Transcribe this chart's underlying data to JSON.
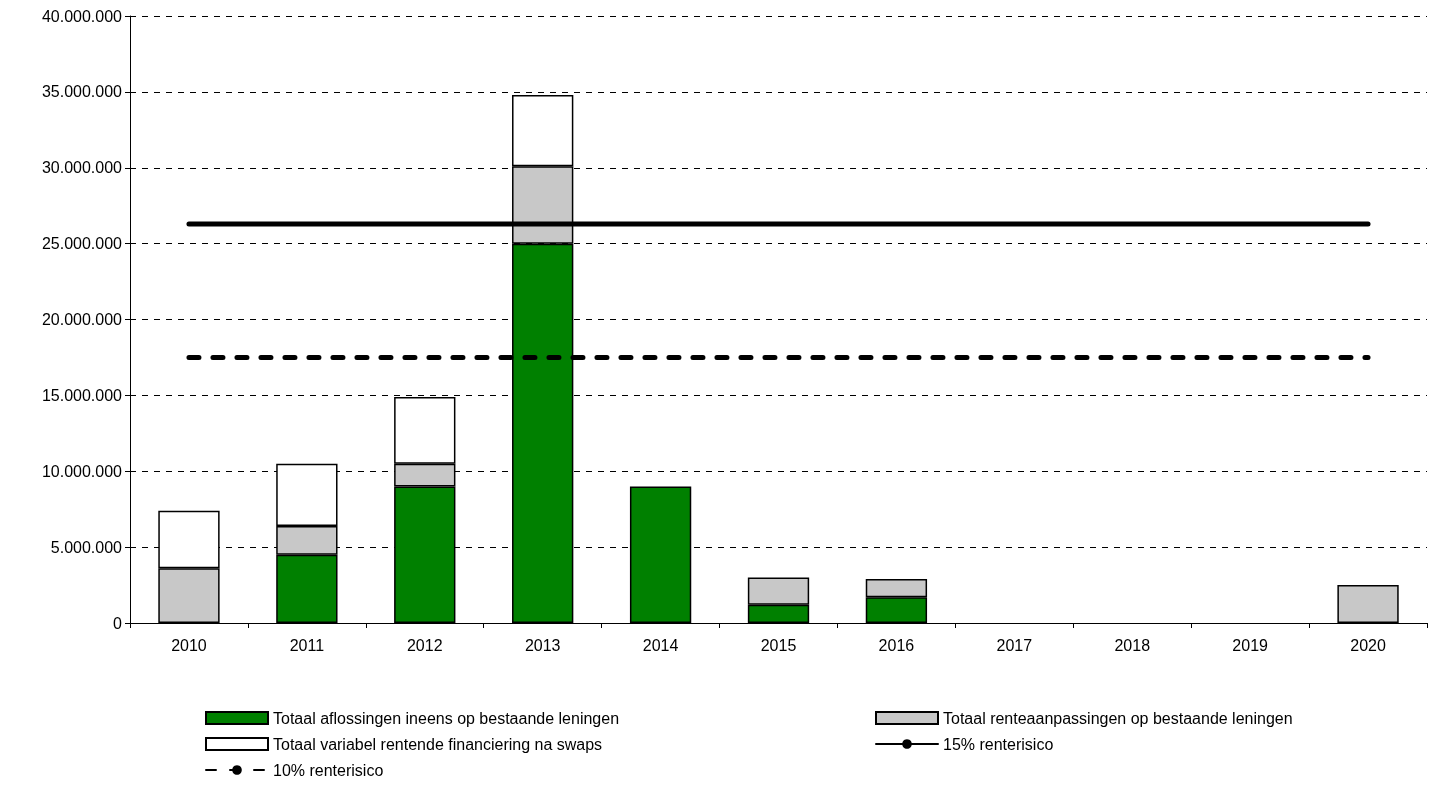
{
  "chart_data": {
    "type": "bar",
    "stacked": true,
    "categories": [
      "2010",
      "2011",
      "2012",
      "2013",
      "2014",
      "2015",
      "2016",
      "2017",
      "2018",
      "2019",
      "2020"
    ],
    "series": [
      {
        "name": "Totaal aflossingen ineens op bestaande leningen",
        "color": "#008000",
        "values": [
          null,
          4500000,
          9000000,
          25000000,
          9000000,
          1200000,
          1700000,
          null,
          null,
          null,
          null
        ]
      },
      {
        "name": "Totaal renteaanpassingen op bestaande leningen",
        "color": "#c8c8c8",
        "values": [
          3600000,
          1900000,
          1500000,
          5100000,
          null,
          1800000,
          1200000,
          null,
          null,
          null,
          2500000
        ]
      },
      {
        "name": "Totaal variabel rentende financiering na swaps",
        "color": "#ffffff",
        "values": [
          3800000,
          4100000,
          4400000,
          4700000,
          null,
          null,
          null,
          null,
          null,
          null,
          null
        ]
      },
      {
        "name": "15% renterisico",
        "type": "line",
        "color": "#000000",
        "line_style": "solid",
        "values": [
          26300000,
          26300000,
          26300000,
          26300000,
          26300000,
          26300000,
          26300000,
          26300000,
          26300000,
          26300000,
          26300000
        ]
      },
      {
        "name": "10% renterisico",
        "type": "line",
        "color": "#000000",
        "line_style": "dashed",
        "values": [
          17500000,
          17500000,
          17500000,
          17500000,
          17500000,
          17500000,
          17500000,
          17500000,
          17500000,
          17500000,
          17500000
        ]
      }
    ],
    "ylim": [
      0,
      40000000
    ],
    "yticks": [
      {
        "value": 0,
        "label": "0"
      },
      {
        "value": 5000000,
        "label": "5.000.000"
      },
      {
        "value": 10000000,
        "label": "10.000.000"
      },
      {
        "value": 15000000,
        "label": "15.000.000"
      },
      {
        "value": 20000000,
        "label": "20.000.000"
      },
      {
        "value": 25000000,
        "label": "25.000.000"
      },
      {
        "value": 30000000,
        "label": "30.000.000"
      },
      {
        "value": 35000000,
        "label": "35.000.000"
      },
      {
        "value": 40000000,
        "label": "40.000.000"
      }
    ],
    "grid": "y",
    "legend": "bottom",
    "marker": "none"
  }
}
